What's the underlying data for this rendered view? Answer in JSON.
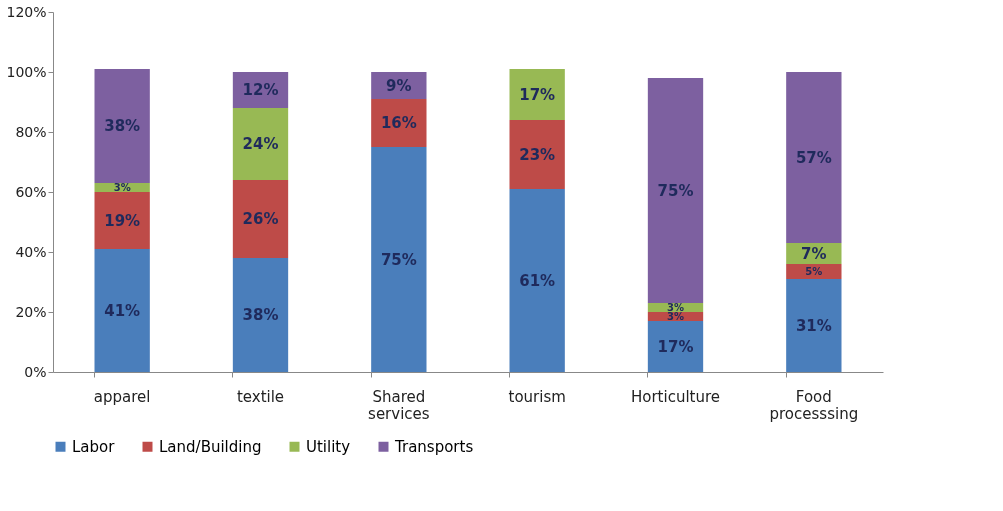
{
  "chart_data": {
    "type": "bar",
    "stacked": true,
    "categories": [
      "apparel",
      "textile",
      "Shared services",
      "tourism",
      "Horticulture",
      "Food processsing"
    ],
    "series": [
      {
        "name": "Labor",
        "color": "#4a7ebb",
        "values": [
          41,
          38,
          75,
          61,
          17,
          31
        ],
        "value_labels": [
          "41%",
          "38%",
          "75%",
          "61%",
          "17%",
          "31%"
        ]
      },
      {
        "name": "Land/Building",
        "color": "#be4b48",
        "values": [
          19,
          26,
          16,
          23,
          3,
          5
        ],
        "value_labels": [
          "19%",
          "26%",
          "16%",
          "23%",
          "3%",
          "5%"
        ]
      },
      {
        "name": "Utility",
        "color": "#98b954",
        "values": [
          3,
          24,
          null,
          17,
          3,
          7
        ],
        "value_labels": [
          "3%",
          "24%",
          null,
          "17%",
          "3%",
          "7%"
        ]
      },
      {
        "name": "Transports",
        "color": "#7d60a0",
        "values": [
          38,
          12,
          9,
          null,
          75,
          57
        ],
        "value_labels": [
          "38%",
          "12%",
          "9%",
          null,
          "75%",
          "57%"
        ]
      }
    ],
    "ylim": [
      0,
      120
    ],
    "yticks": [
      {
        "value": 0,
        "label": "0%"
      },
      {
        "value": 20,
        "label": "20%"
      },
      {
        "value": 40,
        "label": "40%"
      },
      {
        "value": 60,
        "label": "60%"
      },
      {
        "value": 80,
        "label": "80%"
      },
      {
        "value": 100,
        "label": "100%"
      },
      {
        "value": 120,
        "label": "120%"
      }
    ],
    "grid": false,
    "legend": "bottom"
  }
}
